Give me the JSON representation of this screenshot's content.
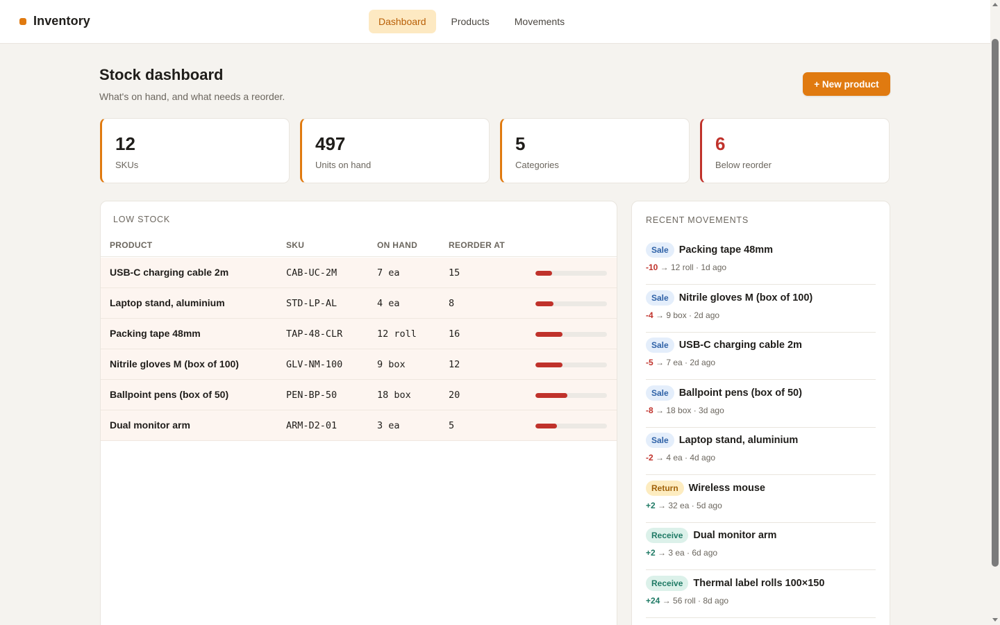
{
  "app": {
    "name": "Inventory"
  },
  "nav": {
    "tabs": [
      {
        "label": "Dashboard",
        "active": true
      },
      {
        "label": "Products",
        "active": false
      },
      {
        "label": "Movements",
        "active": false
      }
    ]
  },
  "header": {
    "title": "Stock dashboard",
    "subtitle": "What's on hand, and what needs a reorder.",
    "new_button": "+ New product"
  },
  "stats": [
    {
      "value": "12",
      "label": "SKUs"
    },
    {
      "value": "497",
      "label": "Units on hand"
    },
    {
      "value": "5",
      "label": "Categories"
    },
    {
      "value": "6",
      "label": "Below reorder"
    }
  ],
  "low_stock": {
    "title": "LOW STOCK",
    "columns": [
      "PRODUCT",
      "SKU",
      "ON HAND",
      "REORDER AT"
    ],
    "rows": [
      {
        "product": "USB-C charging cable 2m",
        "sku": "CAB-UC-2M",
        "on_hand": "7 ea",
        "reorder_at": "15",
        "level": 0.23
      },
      {
        "product": "Laptop stand, aluminium",
        "sku": "STD-LP-AL",
        "on_hand": "4 ea",
        "reorder_at": "8",
        "level": 0.25
      },
      {
        "product": "Packing tape 48mm",
        "sku": "TAP-48-CLR",
        "on_hand": "12 roll",
        "reorder_at": "16",
        "level": 0.38
      },
      {
        "product": "Nitrile gloves M (box of 100)",
        "sku": "GLV-NM-100",
        "on_hand": "9 box",
        "reorder_at": "12",
        "level": 0.38
      },
      {
        "product": "Ballpoint pens (box of 50)",
        "sku": "PEN-BP-50",
        "on_hand": "18 box",
        "reorder_at": "20",
        "level": 0.45
      },
      {
        "product": "Dual monitor arm",
        "sku": "ARM-D2-01",
        "on_hand": "3 ea",
        "reorder_at": "5",
        "level": 0.3
      }
    ]
  },
  "movements": {
    "title": "RECENT MOVEMENTS",
    "items": [
      {
        "type": "Sale",
        "kind": "sale",
        "product": "Packing tape 48mm",
        "delta": "-10",
        "sign": "neg",
        "detail": " → 12 roll · 1d ago"
      },
      {
        "type": "Sale",
        "kind": "sale",
        "product": "Nitrile gloves M (box of 100)",
        "delta": "-4",
        "sign": "neg",
        "detail": " → 9 box · 2d ago"
      },
      {
        "type": "Sale",
        "kind": "sale",
        "product": "USB-C charging cable 2m",
        "delta": "-5",
        "sign": "neg",
        "detail": " → 7 ea · 2d ago"
      },
      {
        "type": "Sale",
        "kind": "sale",
        "product": "Ballpoint pens (box of 50)",
        "delta": "-8",
        "sign": "neg",
        "detail": " → 18 box · 3d ago"
      },
      {
        "type": "Sale",
        "kind": "sale",
        "product": "Laptop stand, aluminium",
        "delta": "-2",
        "sign": "neg",
        "detail": " → 4 ea · 4d ago"
      },
      {
        "type": "Return",
        "kind": "return",
        "product": "Wireless mouse",
        "delta": "+2",
        "sign": "pos",
        "detail": " → 32 ea · 5d ago"
      },
      {
        "type": "Receive",
        "kind": "receive",
        "product": "Dual monitor arm",
        "delta": "+2",
        "sign": "pos",
        "detail": " → 3 ea · 6d ago"
      },
      {
        "type": "Receive",
        "kind": "receive",
        "product": "Thermal label rolls 100×150",
        "delta": "+24",
        "sign": "pos",
        "detail": " → 56 roll · 8d ago"
      }
    ]
  },
  "colors": {
    "accent": "#e07a10",
    "danger": "#c0322b",
    "background": "#f5f3ef"
  }
}
